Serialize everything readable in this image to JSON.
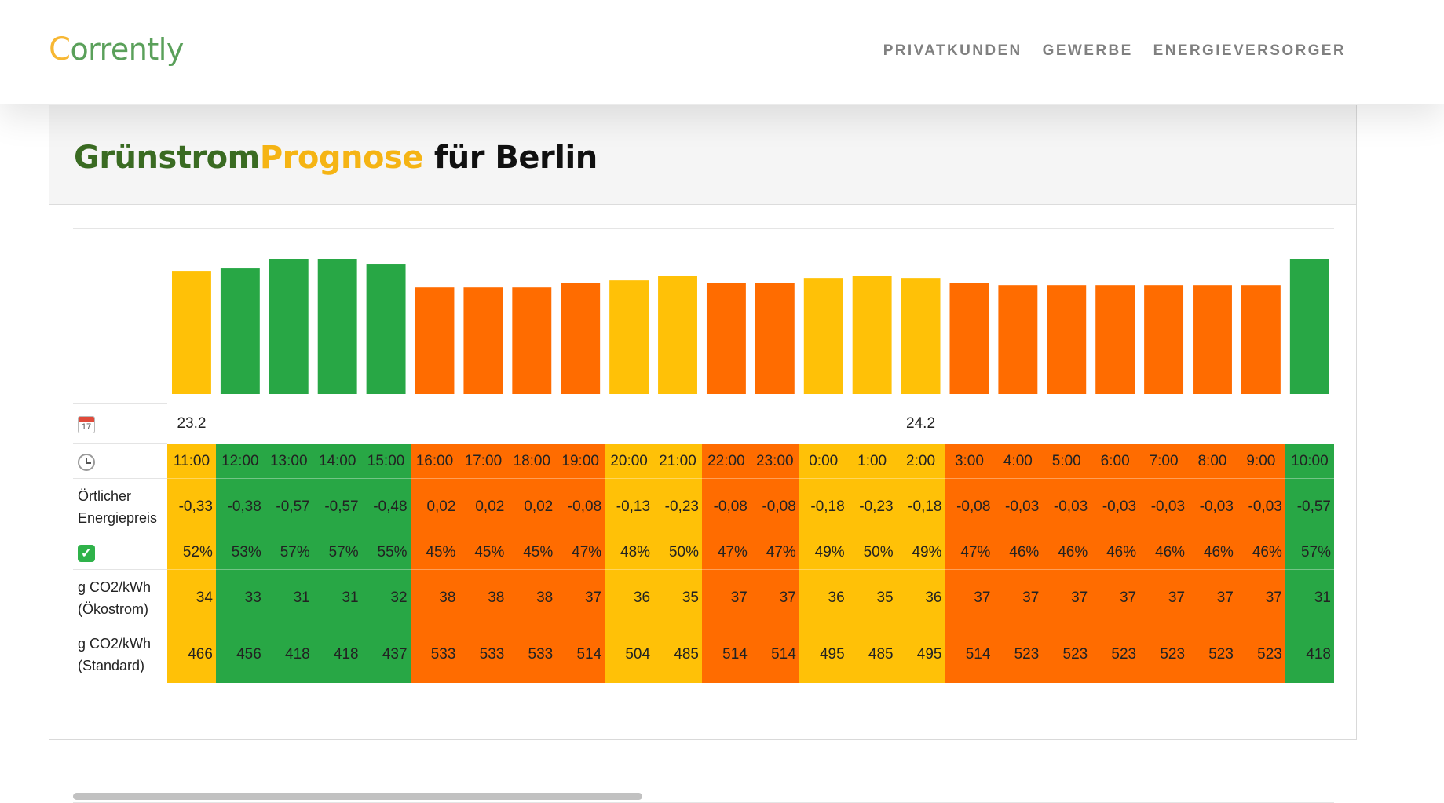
{
  "brand": {
    "logo_first": "C",
    "logo_rest": "orrently"
  },
  "nav": {
    "items": [
      "PRIVATKUNDEN",
      "GEWERBE",
      "ENERGIEVERSORGER"
    ]
  },
  "title": {
    "part1": "Grünstrom",
    "part2": "Prognose",
    "part3": "für Berlin"
  },
  "colors": {
    "yellow": "#ffc107",
    "green": "#28a745",
    "orange": "#ff6c00"
  },
  "rows": {
    "date_icon": "calendar-icon",
    "time_icon": "clock-icon",
    "gsi_icon": "check-icon",
    "price_label": "Örtlicher Energiepreis",
    "co2_eco_label": "g CO2/kWh (Ökostrom)",
    "co2_std_label": "g CO2/kWh (Standard)"
  },
  "dates": [
    "23.2",
    "",
    "",
    "",
    "",
    "",
    "",
    "",
    "",
    "",
    "",
    "",
    "",
    "",
    "",
    "24.2",
    "",
    "",
    "",
    "",
    "",
    "",
    "",
    ""
  ],
  "slots": [
    {
      "time": "11:00",
      "color": "yellow",
      "price": "-0,33",
      "gsi": "52%",
      "co2_eco": "34",
      "co2_std": "466"
    },
    {
      "time": "12:00",
      "color": "green",
      "price": "-0,38",
      "gsi": "53%",
      "co2_eco": "33",
      "co2_std": "456"
    },
    {
      "time": "13:00",
      "color": "green",
      "price": "-0,57",
      "gsi": "57%",
      "co2_eco": "31",
      "co2_std": "418"
    },
    {
      "time": "14:00",
      "color": "green",
      "price": "-0,57",
      "gsi": "57%",
      "co2_eco": "31",
      "co2_std": "418"
    },
    {
      "time": "15:00",
      "color": "green",
      "price": "-0,48",
      "gsi": "55%",
      "co2_eco": "32",
      "co2_std": "437"
    },
    {
      "time": "16:00",
      "color": "orange",
      "price": "0,02",
      "gsi": "45%",
      "co2_eco": "38",
      "co2_std": "533"
    },
    {
      "time": "17:00",
      "color": "orange",
      "price": "0,02",
      "gsi": "45%",
      "co2_eco": "38",
      "co2_std": "533"
    },
    {
      "time": "18:00",
      "color": "orange",
      "price": "0,02",
      "gsi": "45%",
      "co2_eco": "38",
      "co2_std": "533"
    },
    {
      "time": "19:00",
      "color": "orange",
      "price": "-0,08",
      "gsi": "47%",
      "co2_eco": "37",
      "co2_std": "514"
    },
    {
      "time": "20:00",
      "color": "yellow",
      "price": "-0,13",
      "gsi": "48%",
      "co2_eco": "36",
      "co2_std": "504"
    },
    {
      "time": "21:00",
      "color": "yellow",
      "price": "-0,23",
      "gsi": "50%",
      "co2_eco": "35",
      "co2_std": "485"
    },
    {
      "time": "22:00",
      "color": "orange",
      "price": "-0,08",
      "gsi": "47%",
      "co2_eco": "37",
      "co2_std": "514"
    },
    {
      "time": "23:00",
      "color": "orange",
      "price": "-0,08",
      "gsi": "47%",
      "co2_eco": "37",
      "co2_std": "514"
    },
    {
      "time": "0:00",
      "color": "yellow",
      "price": "-0,18",
      "gsi": "49%",
      "co2_eco": "36",
      "co2_std": "495"
    },
    {
      "time": "1:00",
      "color": "yellow",
      "price": "-0,23",
      "gsi": "50%",
      "co2_eco": "35",
      "co2_std": "485"
    },
    {
      "time": "2:00",
      "color": "yellow",
      "price": "-0,18",
      "gsi": "49%",
      "co2_eco": "36",
      "co2_std": "495"
    },
    {
      "time": "3:00",
      "color": "orange",
      "price": "-0,08",
      "gsi": "47%",
      "co2_eco": "37",
      "co2_std": "514"
    },
    {
      "time": "4:00",
      "color": "orange",
      "price": "-0,03",
      "gsi": "46%",
      "co2_eco": "37",
      "co2_std": "523"
    },
    {
      "time": "5:00",
      "color": "orange",
      "price": "-0,03",
      "gsi": "46%",
      "co2_eco": "37",
      "co2_std": "523"
    },
    {
      "time": "6:00",
      "color": "orange",
      "price": "-0,03",
      "gsi": "46%",
      "co2_eco": "37",
      "co2_std": "523"
    },
    {
      "time": "7:00",
      "color": "orange",
      "price": "-0,03",
      "gsi": "46%",
      "co2_eco": "37",
      "co2_std": "523"
    },
    {
      "time": "8:00",
      "color": "orange",
      "price": "-0,03",
      "gsi": "46%",
      "co2_eco": "37",
      "co2_std": "523"
    },
    {
      "time": "9:00",
      "color": "orange",
      "price": "-0,03",
      "gsi": "46%",
      "co2_eco": "37",
      "co2_std": "523"
    },
    {
      "time": "10:00",
      "color": "green",
      "price": "-0,57",
      "gsi": "57%",
      "co2_eco": "31",
      "co2_std": "418"
    }
  ],
  "chart_data": {
    "type": "bar",
    "title": "GrünstromPrognose für Berlin",
    "categories": [
      "11:00",
      "12:00",
      "13:00",
      "14:00",
      "15:00",
      "16:00",
      "17:00",
      "18:00",
      "19:00",
      "20:00",
      "21:00",
      "22:00",
      "23:00",
      "0:00",
      "1:00",
      "2:00",
      "3:00",
      "4:00",
      "5:00",
      "6:00",
      "7:00",
      "8:00",
      "9:00",
      "10:00"
    ],
    "values": [
      52,
      53,
      57,
      57,
      55,
      45,
      45,
      45,
      47,
      48,
      50,
      47,
      47,
      49,
      50,
      49,
      47,
      46,
      46,
      46,
      46,
      46,
      46,
      57
    ],
    "xlabel": "",
    "ylabel": "",
    "ylim": [
      0,
      57
    ]
  }
}
